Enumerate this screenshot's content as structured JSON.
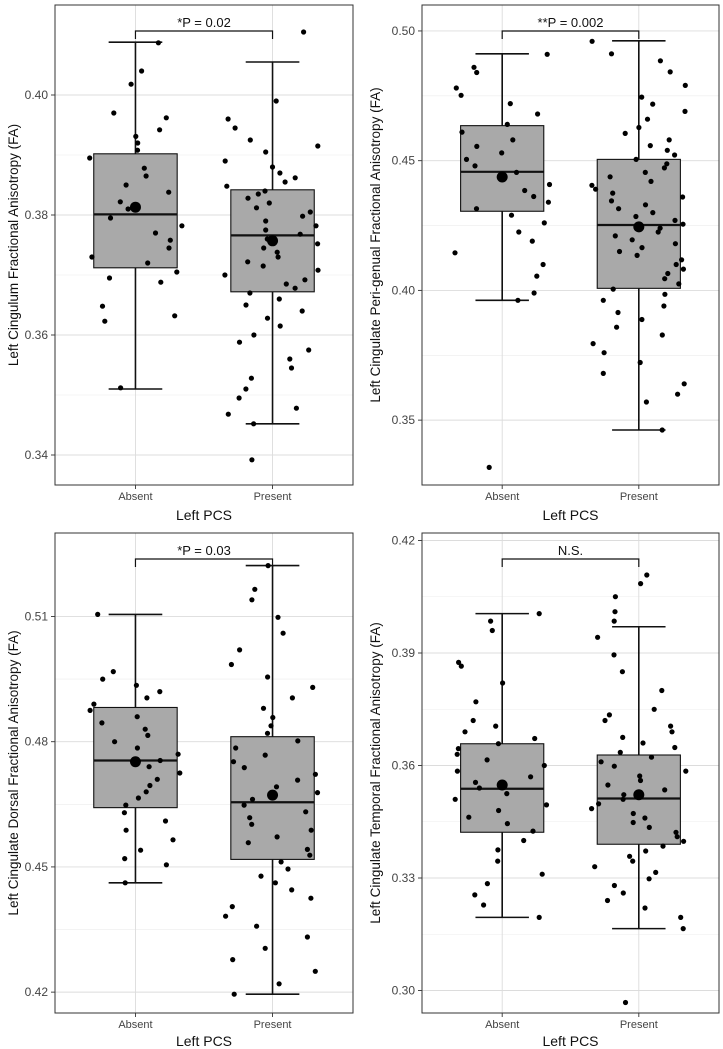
{
  "chart_data": [
    {
      "type": "box",
      "xlabel": "Left PCS",
      "ylabel": "Left Cingulum Fractional Anisotropy (FA)",
      "annotation": "*P = 0.02",
      "categories": [
        "Absent",
        "Present"
      ],
      "ylim": [
        0.335,
        0.415
      ],
      "yticks": [
        0.34,
        0.36,
        0.38,
        0.4
      ],
      "ytick_labels": [
        "0.34",
        "0.36",
        "0.38",
        "0.40"
      ],
      "grid": true,
      "boxes": [
        {
          "category": "Absent",
          "whisker_low": 0.351,
          "q1": 0.3712,
          "median": 0.3801,
          "q3": 0.3902,
          "whisker_high": 0.4088,
          "mean": 0.3813
        },
        {
          "category": "Present",
          "whisker_low": 0.3452,
          "q1": 0.3672,
          "median": 0.3766,
          "q3": 0.3842,
          "whisker_high": 0.4055,
          "mean": 0.3757
        }
      ],
      "points": [
        {
          "category": "Absent",
          "values": [
            0.4087,
            0.404,
            0.4018,
            0.397,
            0.3962,
            0.3942,
            0.3931,
            0.392,
            0.3908,
            0.3895,
            0.3878,
            0.3865,
            0.385,
            0.3838,
            0.3822,
            0.381,
            0.3795,
            0.3782,
            0.377,
            0.3758,
            0.3745,
            0.373,
            0.372,
            0.3705,
            0.3695,
            0.3688,
            0.3648,
            0.3632,
            0.3623,
            0.3512
          ]
        },
        {
          "category": "Present",
          "values": [
            0.4105,
            0.399,
            0.396,
            0.3945,
            0.3925,
            0.3915,
            0.3905,
            0.389,
            0.388,
            0.387,
            0.3862,
            0.3855,
            0.3848,
            0.384,
            0.3835,
            0.3828,
            0.382,
            0.3812,
            0.3805,
            0.3798,
            0.379,
            0.3782,
            0.3775,
            0.3768,
            0.376,
            0.3752,
            0.3745,
            0.3738,
            0.373,
            0.3722,
            0.3715,
            0.3708,
            0.37,
            0.3692,
            0.3685,
            0.3678,
            0.367,
            0.366,
            0.365,
            0.364,
            0.3628,
            0.3615,
            0.36,
            0.3588,
            0.3575,
            0.356,
            0.3545,
            0.3528,
            0.351,
            0.3495,
            0.3478,
            0.3468,
            0.3452,
            0.3392
          ]
        }
      ]
    },
    {
      "type": "box",
      "xlabel": "Left PCS",
      "ylabel": "Left Cingulate Peri-genual Fractional Anisotropy (FA)",
      "annotation": "**P = 0.002",
      "categories": [
        "Absent",
        "Present"
      ],
      "ylim": [
        0.325,
        0.51
      ],
      "yticks": [
        0.35,
        0.4,
        0.45,
        0.5
      ],
      "ytick_labels": [
        "0.35",
        "0.40",
        "0.45",
        "0.50"
      ],
      "grid": true,
      "boxes": [
        {
          "category": "Absent",
          "whisker_low": 0.3962,
          "q1": 0.4305,
          "median": 0.4457,
          "q3": 0.4635,
          "whisker_high": 0.4912,
          "mean": 0.4437
        },
        {
          "category": "Present",
          "whisker_low": 0.3462,
          "q1": 0.4008,
          "median": 0.4252,
          "q3": 0.4505,
          "whisker_high": 0.4962,
          "mean": 0.4245
        }
      ],
      "points": [
        {
          "category": "Absent",
          "values": [
            0.491,
            0.486,
            0.484,
            0.478,
            0.4752,
            0.472,
            0.468,
            0.464,
            0.461,
            0.458,
            0.4555,
            0.453,
            0.4505,
            0.448,
            0.4455,
            0.443,
            0.4408,
            0.4385,
            0.4362,
            0.434,
            0.4315,
            0.429,
            0.426,
            0.4225,
            0.419,
            0.4145,
            0.41,
            0.4055,
            0.399,
            0.3962,
            0.3318
          ]
        },
        {
          "category": "Present",
          "values": [
            0.496,
            0.4912,
            0.4885,
            0.4842,
            0.479,
            0.4745,
            0.4718,
            0.469,
            0.466,
            0.4628,
            0.4605,
            0.458,
            0.4558,
            0.454,
            0.4522,
            0.4505,
            0.4488,
            0.4472,
            0.4455,
            0.4438,
            0.442,
            0.4405,
            0.439,
            0.4375,
            0.436,
            0.4345,
            0.433,
            0.4315,
            0.43,
            0.4285,
            0.427,
            0.4255,
            0.424,
            0.4225,
            0.421,
            0.4195,
            0.418,
            0.4165,
            0.415,
            0.4135,
            0.4118,
            0.41,
            0.4082,
            0.4065,
            0.4045,
            0.4025,
            0.4005,
            0.3985,
            0.3962,
            0.394,
            0.3915,
            0.3888,
            0.3858,
            0.3828,
            0.3795,
            0.376,
            0.3722,
            0.368,
            0.364,
            0.36,
            0.357,
            0.3462
          ]
        }
      ]
    },
    {
      "type": "box",
      "xlabel": "Left PCS",
      "ylabel": "Left Cingulate Dorsal Fractional Anisotropy (FA)",
      "annotation": "*P = 0.03",
      "categories": [
        "Absent",
        "Present"
      ],
      "ylim": [
        0.415,
        0.53
      ],
      "yticks": [
        0.42,
        0.45,
        0.48,
        0.51
      ],
      "ytick_labels": [
        "0.42",
        "0.45",
        "0.48",
        "0.51"
      ],
      "grid": true,
      "boxes": [
        {
          "category": "Absent",
          "whisker_low": 0.4462,
          "q1": 0.4642,
          "median": 0.4755,
          "q3": 0.4882,
          "whisker_high": 0.5105,
          "mean": 0.4752
        },
        {
          "category": "Present",
          "whisker_low": 0.4195,
          "q1": 0.4518,
          "median": 0.4655,
          "q3": 0.4812,
          "whisker_high": 0.5222,
          "mean": 0.4672
        }
      ],
      "points": [
        {
          "category": "Absent",
          "values": [
            0.5105,
            0.4968,
            0.495,
            0.4935,
            0.492,
            0.4905,
            0.489,
            0.4875,
            0.486,
            0.4845,
            0.483,
            0.4815,
            0.48,
            0.4785,
            0.477,
            0.4755,
            0.474,
            0.4725,
            0.471,
            0.4695,
            0.468,
            0.4665,
            0.4648,
            0.463,
            0.461,
            0.4588,
            0.4565,
            0.454,
            0.452,
            0.4505,
            0.4462
          ]
        },
        {
          "category": "Present",
          "values": [
            0.5222,
            0.5165,
            0.514,
            0.5098,
            0.506,
            0.502,
            0.4985,
            0.4955,
            0.493,
            0.4905,
            0.488,
            0.4858,
            0.4838,
            0.482,
            0.4802,
            0.4785,
            0.4768,
            0.4752,
            0.4738,
            0.4722,
            0.4708,
            0.4692,
            0.4678,
            0.4662,
            0.4648,
            0.4632,
            0.4618,
            0.4602,
            0.4588,
            0.4572,
            0.4558,
            0.4542,
            0.4528,
            0.4512,
            0.4495,
            0.4478,
            0.4462,
            0.4445,
            0.4425,
            0.4405,
            0.4382,
            0.4358,
            0.4332,
            0.4305,
            0.4278,
            0.425,
            0.422,
            0.4195
          ]
        }
      ]
    },
    {
      "type": "box",
      "xlabel": "Left PCS",
      "ylabel": "Left Cingulate Temporal Fractional Anisotropy (FA)",
      "annotation": "N.S.",
      "categories": [
        "Absent",
        "Present"
      ],
      "ylim": [
        0.294,
        0.422
      ],
      "yticks": [
        0.3,
        0.33,
        0.36,
        0.39,
        0.42
      ],
      "ytick_labels": [
        "0.30",
        "0.33",
        "0.36",
        "0.39",
        "0.42"
      ],
      "grid": true,
      "boxes": [
        {
          "category": "Absent",
          "whisker_low": 0.3195,
          "q1": 0.3422,
          "median": 0.3538,
          "q3": 0.3658,
          "whisker_high": 0.4005,
          "mean": 0.3548
        },
        {
          "category": "Present",
          "whisker_low": 0.3165,
          "q1": 0.339,
          "median": 0.3512,
          "q3": 0.3628,
          "whisker_high": 0.397,
          "mean": 0.3522
        }
      ],
      "points": [
        {
          "category": "Absent",
          "values": [
            0.4005,
            0.3985,
            0.396,
            0.3875,
            0.3865,
            0.382,
            0.377,
            0.372,
            0.3705,
            0.369,
            0.3672,
            0.3658,
            0.3645,
            0.363,
            0.3615,
            0.36,
            0.3585,
            0.357,
            0.3555,
            0.354,
            0.3525,
            0.351,
            0.3495,
            0.348,
            0.3462,
            0.3445,
            0.3425,
            0.34,
            0.3375,
            0.3345,
            0.331,
            0.3285,
            0.3255,
            0.3228,
            0.3195
          ]
        },
        {
          "category": "Present",
          "values": [
            0.4108,
            0.4085,
            0.405,
            0.401,
            0.3985,
            0.3942,
            0.3895,
            0.385,
            0.38,
            0.375,
            0.3735,
            0.372,
            0.3705,
            0.369,
            0.3675,
            0.366,
            0.3648,
            0.3635,
            0.3622,
            0.361,
            0.3598,
            0.3585,
            0.3572,
            0.356,
            0.3548,
            0.3535,
            0.3522,
            0.351,
            0.3498,
            0.3485,
            0.3472,
            0.346,
            0.3448,
            0.3435,
            0.3422,
            0.341,
            0.3398,
            0.3385,
            0.3372,
            0.3358,
            0.3345,
            0.333,
            0.3315,
            0.3298,
            0.328,
            0.326,
            0.324,
            0.322,
            0.3195,
            0.3165,
            0.2968
          ]
        }
      ]
    }
  ]
}
